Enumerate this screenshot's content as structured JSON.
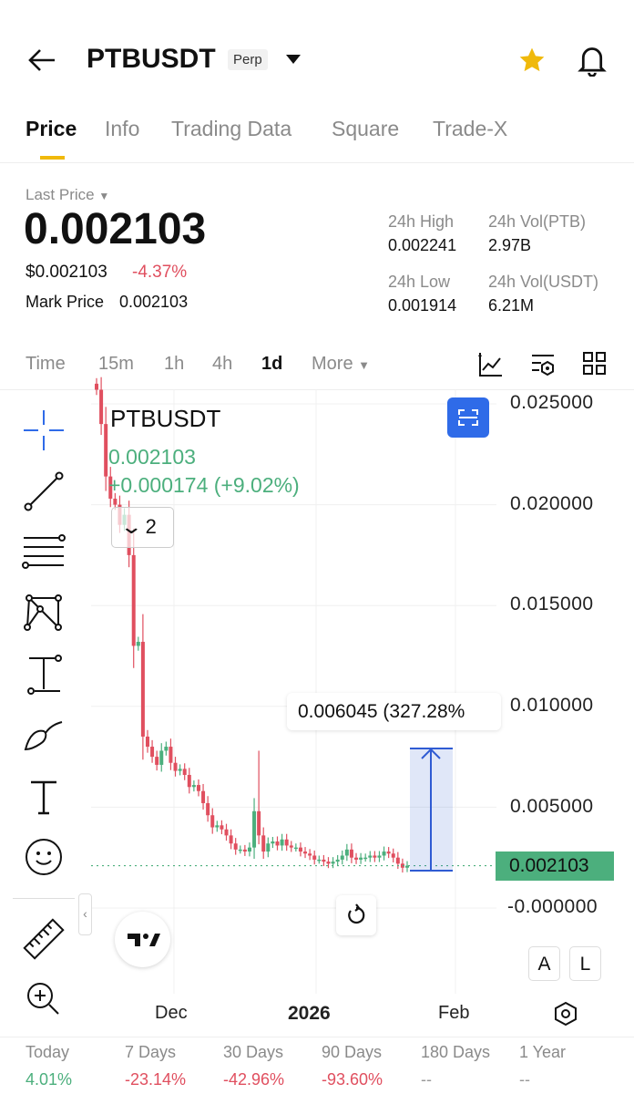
{
  "header": {
    "title": "PTBUSDT",
    "badge": "Perp",
    "back_icon": "arrow-left-icon",
    "favorite_icon": "star-icon",
    "alert_icon": "bell-icon",
    "star_color": "#F0B90B"
  },
  "tabs": [
    {
      "label": "Price",
      "active": true
    },
    {
      "label": "Info"
    },
    {
      "label": "Trading Data"
    },
    {
      "label": "Square"
    },
    {
      "label": "Trade-X"
    }
  ],
  "price": {
    "label": "Last Price",
    "last": "0.002103",
    "usd": "$0.002103",
    "change": "-4.37%",
    "mark_label": "Mark Price",
    "mark": "0.002103"
  },
  "stats": {
    "high_label": "24h High",
    "high": "0.002241",
    "vol_base_label": "24h Vol(PTB)",
    "vol_base": "2.97B",
    "low_label": "24h Low",
    "low": "0.001914",
    "vol_quote_label": "24h Vol(USDT)",
    "vol_quote": "6.21M"
  },
  "timeframes": [
    {
      "label": "Time"
    },
    {
      "label": "15m"
    },
    {
      "label": "1h"
    },
    {
      "label": "4h"
    },
    {
      "label": "1d",
      "active": true
    },
    {
      "label": "More"
    }
  ],
  "chart": {
    "legend_symbol": "PTBUSDT",
    "legend_price": "0.002103",
    "legend_change": "+0.000174 (+9.02%)",
    "collapsed_count": "2",
    "measure_label": "0.006045 (327.28%",
    "current_price_tag": "0.002103",
    "scale_buttons": {
      "auto": "A",
      "log": "L"
    },
    "colors": {
      "up": "#4CAF7D",
      "down": "#E04F5F",
      "tag": "#4CAF7D",
      "measure": "#2F5BD3"
    }
  },
  "chart_data": {
    "type": "candlestick",
    "y_ticks": [
      "0.025000",
      "0.020000",
      "0.015000",
      "0.010000",
      "0.005000",
      "-0.000000"
    ],
    "ylim": [
      0,
      0.025
    ],
    "x_ticks": [
      "Dec",
      "2026",
      "Feb"
    ],
    "closes": [
      0.0257,
      0.024,
      0.0214,
      0.0203,
      0.02,
      0.019,
      0.0195,
      0.0175,
      0.013,
      0.0132,
      0.0085,
      0.008,
      0.0075,
      0.0071,
      0.0078,
      0.008,
      0.0072,
      0.0068,
      0.0069,
      0.0066,
      0.006,
      0.0061,
      0.0058,
      0.0052,
      0.0046,
      0.004,
      0.0041,
      0.0039,
      0.0036,
      0.0032,
      0.0029,
      0.0029,
      0.0028,
      0.003,
      0.0048,
      0.0036,
      0.0028,
      0.0032,
      0.0033,
      0.0031,
      0.0034,
      0.0031,
      0.003,
      0.003,
      0.0028,
      0.0027,
      0.0026,
      0.0024,
      0.0024,
      0.0023,
      0.0022,
      0.0023,
      0.0024,
      0.0026,
      0.0029,
      0.0025,
      0.0024,
      0.0025,
      0.0025,
      0.0026,
      0.0025,
      0.0026,
      0.0028,
      0.0027,
      0.0025,
      0.0022,
      0.002,
      0.0021
    ]
  },
  "performance": [
    {
      "label": "Today",
      "value": "4.01%",
      "dir": "up"
    },
    {
      "label": "7 Days",
      "value": "-23.14%",
      "dir": "down"
    },
    {
      "label": "30 Days",
      "value": "-42.96%",
      "dir": "down"
    },
    {
      "label": "90 Days",
      "value": "-93.60%",
      "dir": "down"
    },
    {
      "label": "180 Days",
      "value": "--"
    },
    {
      "label": "1 Year",
      "value": "--"
    }
  ]
}
